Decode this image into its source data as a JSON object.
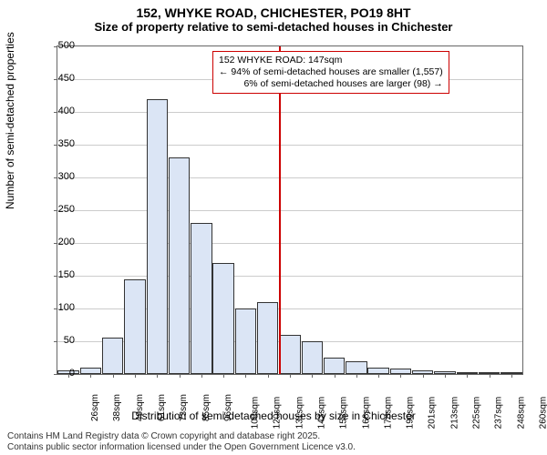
{
  "title_main": "152, WHYKE ROAD, CHICHESTER, PO19 8HT",
  "title_sub": "Size of property relative to semi-detached houses in Chichester",
  "y_axis_label": "Number of semi-detached properties",
  "x_axis_label": "Distribution of semi-detached houses by size in Chichester",
  "footer_line1": "Contains HM Land Registry data © Crown copyright and database right 2025.",
  "footer_line2": "Contains public sector information licensed under the Open Government Licence v3.0.",
  "chart": {
    "type": "histogram",
    "ylim": [
      0,
      500
    ],
    "ytick_step": 50,
    "bar_fill": "#dbe5f5",
    "bar_stroke": "#333333",
    "grid_color": "#cccccc",
    "background_color": "#ffffff",
    "title_fontsize": 14,
    "label_fontsize": 12,
    "tick_fontsize": 11,
    "x_categories": [
      "26sqm",
      "38sqm",
      "49sqm",
      "61sqm",
      "73sqm",
      "85sqm",
      "96sqm",
      "108sqm",
      "120sqm",
      "131sqm",
      "143sqm",
      "155sqm",
      "166sqm",
      "178sqm",
      "190sqm",
      "201sqm",
      "213sqm",
      "225sqm",
      "237sqm",
      "248sqm",
      "260sqm"
    ],
    "values": [
      5,
      10,
      55,
      145,
      420,
      330,
      230,
      170,
      100,
      110,
      60,
      50,
      25,
      20,
      10,
      8,
      5,
      4,
      3,
      3,
      2
    ],
    "reference_line": {
      "x_index_after": 10,
      "color": "#cc0000"
    },
    "annotation": {
      "line1": "152 WHYKE ROAD: 147sqm",
      "line2": "← 94% of semi-detached houses are smaller (1,557)",
      "line3": "6% of semi-detached houses are larger (98) →",
      "border_color": "#cc0000"
    }
  }
}
